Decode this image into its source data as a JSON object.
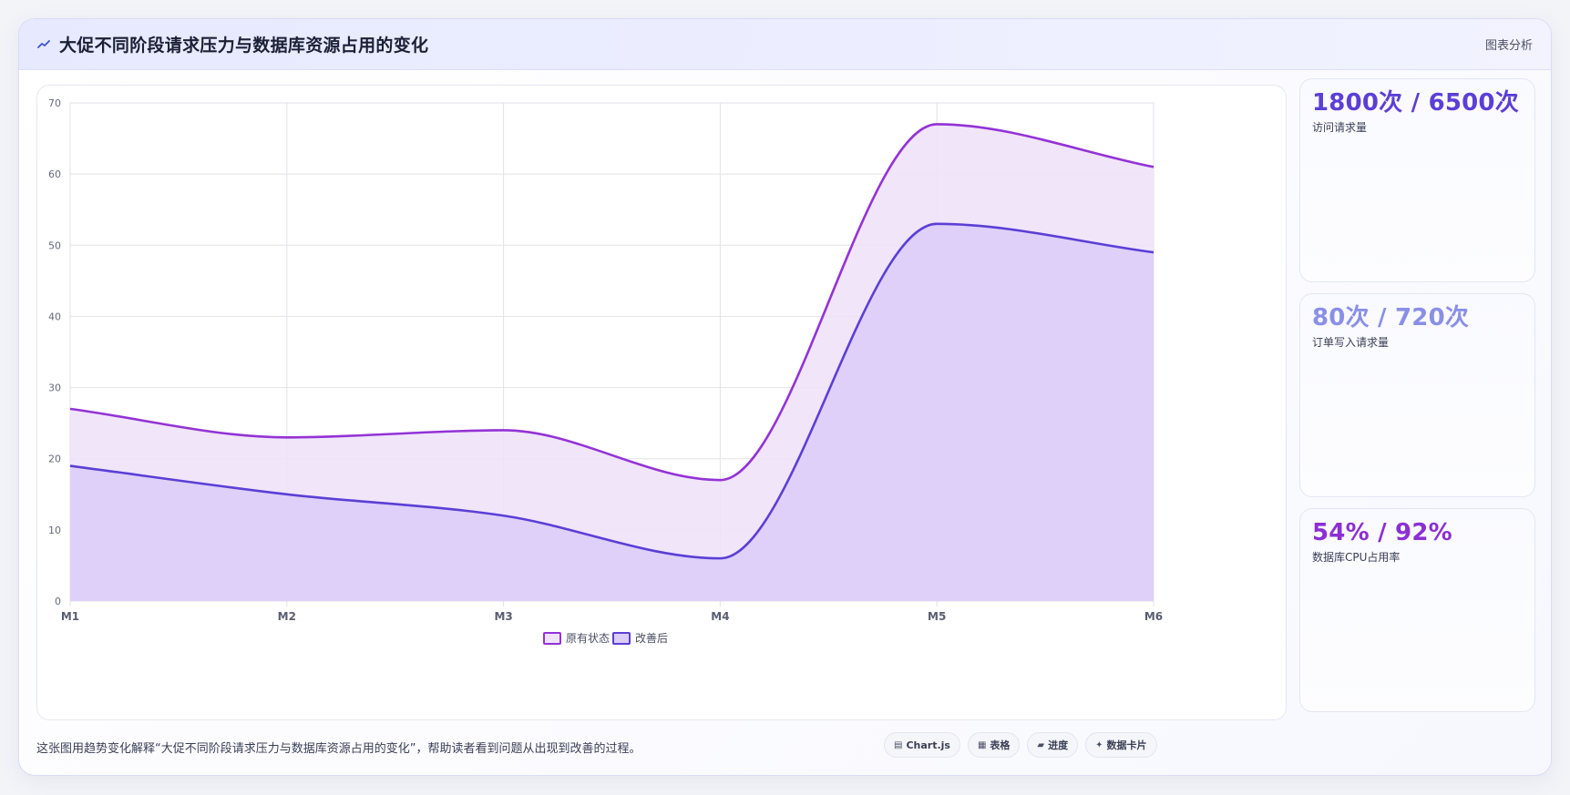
{
  "header": {
    "title": "大促不同阶段请求压力与数据库资源占用的变化",
    "tag": "图表分析",
    "icon": "trend-line-icon"
  },
  "stats": [
    {
      "value": "1800次 / 6500次",
      "label": "访问请求量",
      "color": "#5b3fd6"
    },
    {
      "value": "80次 / 720次",
      "label": "订单写入请求量",
      "color": "#8a8fe6"
    },
    {
      "value": "54% / 92%",
      "label": "数据库CPU占用率",
      "color": "#8b2fd4"
    }
  ],
  "footer": {
    "note": "这张图用趋势变化解释“大促不同阶段请求压力与数据库资源占用的变化”，帮助读者看到问题从出现到改善的过程。",
    "chips": [
      {
        "icon": "chart-icon",
        "glyph": "▤",
        "label": "Chart.js"
      },
      {
        "icon": "table-icon",
        "glyph": "▦",
        "label": "表格"
      },
      {
        "icon": "progress-icon",
        "glyph": "▰",
        "label": "进度"
      },
      {
        "icon": "card-icon",
        "glyph": "✦",
        "label": "数据卡片"
      }
    ]
  },
  "chart_data": {
    "type": "area",
    "categories": [
      "M1",
      "M2",
      "M3",
      "M4",
      "M5",
      "M6"
    ],
    "series": [
      {
        "name": "原有状态",
        "values": [
          27,
          23,
          24,
          17,
          67,
          61
        ],
        "color": "#9333d6",
        "fill": "#efe2fa"
      },
      {
        "name": "改善后",
        "values": [
          19,
          15,
          12,
          6,
          53,
          49
        ],
        "color": "#5b3fd6",
        "fill": "#dccdf8"
      }
    ],
    "ylim": [
      0,
      70
    ],
    "yticks": [
      0,
      10,
      20,
      30,
      40,
      50,
      60,
      70
    ],
    "grid": true,
    "legend": "bottom",
    "title": "",
    "xlabel": "",
    "ylabel": ""
  }
}
